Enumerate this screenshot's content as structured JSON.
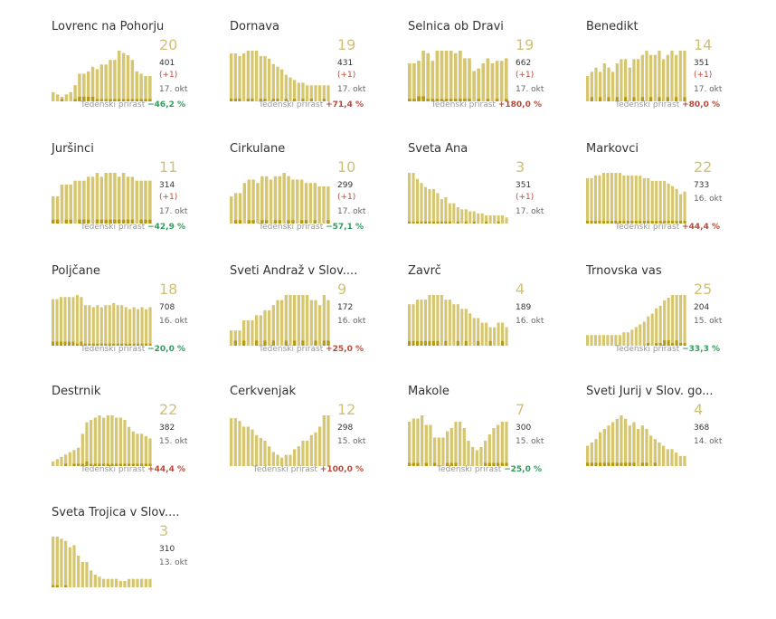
{
  "growth_label": "Tedenski prirast",
  "colors": {
    "total_bar": "#d6c670",
    "new_bar": "#b89a10",
    "big_number": "#d2c175",
    "increase": "#b84a3a",
    "decrease": "#2f9e5a"
  },
  "chart_data": [
    {
      "type": "bar",
      "title": "Lovrenc na Pohorju",
      "active": "20",
      "total": "401",
      "delta": "(+1)",
      "date": "17. okt",
      "growth": "−46,2 %",
      "growth_dir": "down",
      "values": [
        4,
        3,
        2,
        3,
        4,
        7,
        12,
        12,
        13,
        15,
        14,
        16,
        16,
        18,
        18,
        22,
        21,
        20,
        18,
        13,
        12,
        11,
        11
      ],
      "new_values": [
        0,
        0,
        1,
        0,
        0,
        1,
        2,
        2,
        2,
        2,
        1,
        1,
        1,
        1,
        1,
        1,
        1,
        1,
        1,
        1,
        1,
        1,
        1
      ]
    },
    {
      "type": "bar",
      "title": "Dornava",
      "active": "19",
      "total": "431",
      "delta": "(+1)",
      "date": "17. okt",
      "growth": "+71,4 %",
      "growth_dir": "up",
      "values": [
        18,
        18,
        17,
        18,
        19,
        19,
        19,
        17,
        17,
        16,
        14,
        13,
        12,
        10,
        9,
        8,
        7,
        7,
        6,
        6,
        6,
        6,
        6,
        6
      ],
      "new_values": [
        1,
        1,
        1,
        0,
        1,
        1,
        0,
        1,
        1,
        0,
        1,
        1,
        0,
        1,
        0,
        1,
        0,
        1,
        0,
        1,
        0,
        0,
        1,
        0
      ]
    },
    {
      "type": "bar",
      "title": "Selnica ob Dravi",
      "active": "19",
      "total": "662",
      "delta": "(+1)",
      "date": "17. okt",
      "growth": "+180,0 %",
      "growth_dir": "up",
      "values": [
        15,
        15,
        16,
        20,
        19,
        16,
        20,
        20,
        20,
        20,
        19,
        20,
        17,
        17,
        12,
        13,
        15,
        17,
        15,
        16,
        16,
        17
      ],
      "new_values": [
        1,
        1,
        2,
        2,
        1,
        1,
        1,
        1,
        1,
        1,
        1,
        1,
        1,
        1,
        0,
        1,
        0,
        1,
        0,
        1,
        0,
        1
      ]
    },
    {
      "type": "bar",
      "title": "Benedikt",
      "active": "14",
      "total": "351",
      "delta": "(+1)",
      "date": "17. okt",
      "growth": "+80,0 %",
      "growth_dir": "up",
      "values": [
        6,
        7,
        8,
        7,
        9,
        8,
        7,
        9,
        10,
        10,
        8,
        10,
        10,
        11,
        12,
        11,
        11,
        12,
        10,
        11,
        12,
        11,
        12,
        12
      ],
      "new_values": [
        0,
        1,
        0,
        1,
        0,
        1,
        0,
        1,
        0,
        1,
        0,
        1,
        0,
        1,
        0,
        1,
        0,
        1,
        0,
        1,
        0,
        1,
        0,
        1
      ]
    },
    {
      "type": "bar",
      "title": "Juršinci",
      "active": "11",
      "total": "314",
      "delta": "(+1)",
      "date": "17. okt",
      "growth": "−42,9 %",
      "growth_dir": "down",
      "values": [
        7,
        7,
        10,
        10,
        10,
        11,
        11,
        11,
        12,
        12,
        13,
        12,
        13,
        13,
        13,
        12,
        13,
        12,
        12,
        11,
        11,
        11,
        11
      ],
      "new_values": [
        1,
        1,
        0,
        1,
        1,
        0,
        1,
        1,
        1,
        0,
        1,
        1,
        1,
        1,
        1,
        1,
        1,
        1,
        1,
        0,
        1,
        1,
        1
      ]
    },
    {
      "type": "bar",
      "title": "Cirkulane",
      "active": "10",
      "total": "299",
      "delta": "(+1)",
      "date": "17. okt",
      "growth": "−57,1 %",
      "growth_dir": "down",
      "values": [
        8,
        9,
        9,
        12,
        13,
        13,
        12,
        14,
        14,
        13,
        14,
        14,
        15,
        14,
        13,
        13,
        13,
        12,
        12,
        12,
        11,
        11,
        11
      ],
      "new_values": [
        0,
        1,
        1,
        0,
        1,
        1,
        0,
        1,
        1,
        0,
        1,
        1,
        0,
        1,
        1,
        0,
        1,
        1,
        0,
        1,
        0,
        0,
        1
      ]
    },
    {
      "type": "bar",
      "title": "Sveta Ana",
      "active": "3",
      "total": "351",
      "delta": "(+1)",
      "date": "17. okt",
      "growth": "",
      "growth_dir": "",
      "values": [
        25,
        25,
        22,
        20,
        18,
        17,
        17,
        15,
        12,
        13,
        10,
        10,
        8,
        7,
        7,
        6,
        6,
        5,
        5,
        4,
        4,
        4,
        4,
        4,
        3
      ],
      "new_values": [
        1,
        1,
        1,
        1,
        1,
        1,
        1,
        1,
        1,
        1,
        1,
        0,
        1,
        0,
        1,
        0,
        1,
        0,
        0,
        1,
        0,
        0,
        1,
        0,
        0
      ]
    },
    {
      "type": "bar",
      "title": "Markovci",
      "active": "22",
      "total": "733",
      "delta": "",
      "date": "16. okt",
      "growth": "+44,4 %",
      "growth_dir": "up",
      "values": [
        17,
        17,
        18,
        18,
        19,
        19,
        19,
        19,
        19,
        18,
        18,
        18,
        18,
        18,
        17,
        17,
        16,
        16,
        16,
        16,
        15,
        14,
        13,
        11,
        12
      ],
      "new_values": [
        1,
        1,
        1,
        1,
        1,
        1,
        1,
        1,
        1,
        1,
        1,
        1,
        1,
        1,
        1,
        1,
        1,
        1,
        1,
        1,
        1,
        1,
        1,
        1,
        1
      ]
    },
    {
      "type": "bar",
      "title": "Poljčane",
      "active": "18",
      "total": "708",
      "delta": "",
      "date": "16. okt",
      "growth": "−20,0 %",
      "growth_dir": "down",
      "values": [
        23,
        23,
        24,
        24,
        24,
        24,
        25,
        24,
        20,
        20,
        19,
        20,
        19,
        20,
        20,
        21,
        20,
        20,
        19,
        18,
        19,
        18,
        19,
        18,
        19
      ],
      "new_values": [
        2,
        2,
        2,
        2,
        2,
        2,
        1,
        2,
        1,
        1,
        1,
        1,
        1,
        1,
        1,
        1,
        1,
        1,
        1,
        1,
        1,
        1,
        1,
        1,
        1
      ]
    },
    {
      "type": "bar",
      "title": "Sveti Andraž v Slov....",
      "active": "9",
      "total": "172",
      "delta": "",
      "date": "16. okt",
      "growth": "+25,0 %",
      "growth_dir": "up",
      "values": [
        3,
        3,
        3,
        5,
        5,
        5,
        6,
        6,
        7,
        7,
        8,
        9,
        9,
        10,
        10,
        10,
        10,
        10,
        10,
        9,
        9,
        8,
        10,
        9
      ],
      "new_values": [
        0,
        1,
        0,
        1,
        0,
        0,
        1,
        0,
        1,
        0,
        1,
        0,
        0,
        1,
        0,
        1,
        0,
        1,
        0,
        0,
        1,
        0,
        1,
        1
      ]
    },
    {
      "type": "bar",
      "title": "Zavrč",
      "active": "4",
      "total": "189",
      "delta": "",
      "date": "16. okt",
      "growth": "",
      "growth_dir": "",
      "values": [
        9,
        9,
        10,
        10,
        10,
        11,
        11,
        11,
        11,
        10,
        10,
        9,
        9,
        8,
        8,
        7,
        6,
        6,
        5,
        5,
        4,
        4,
        5,
        5,
        4
      ],
      "new_values": [
        1,
        1,
        1,
        1,
        1,
        1,
        1,
        1,
        0,
        1,
        0,
        0,
        1,
        0,
        1,
        0,
        0,
        1,
        0,
        0,
        1,
        0,
        0,
        1,
        0
      ]
    },
    {
      "type": "bar",
      "title": "Trnovska vas",
      "active": "25",
      "total": "204",
      "delta": "",
      "date": "15. okt",
      "growth": "−33,3 %",
      "growth_dir": "down",
      "values": [
        4,
        4,
        4,
        4,
        4,
        4,
        4,
        4,
        4,
        5,
        5,
        6,
        7,
        8,
        9,
        11,
        12,
        14,
        15,
        17,
        18,
        19,
        19,
        19,
        19
      ],
      "new_values": [
        0,
        0,
        0,
        0,
        0,
        0,
        0,
        0,
        0,
        0,
        0,
        0,
        0,
        0,
        0,
        1,
        0,
        1,
        1,
        2,
        2,
        1,
        2,
        1,
        1
      ]
    },
    {
      "type": "bar",
      "title": "Destrnik",
      "active": "22",
      "total": "382",
      "delta": "",
      "date": "15. okt",
      "growth": "+44,4 %",
      "growth_dir": "up",
      "values": [
        2,
        3,
        4,
        5,
        6,
        7,
        8,
        14,
        19,
        20,
        21,
        22,
        21,
        22,
        22,
        21,
        21,
        20,
        17,
        15,
        14,
        14,
        13,
        12
      ],
      "new_values": [
        0,
        0,
        0,
        1,
        0,
        1,
        1,
        1,
        2,
        1,
        1,
        1,
        1,
        1,
        1,
        1,
        1,
        1,
        1,
        1,
        1,
        1,
        1,
        1
      ]
    },
    {
      "type": "bar",
      "title": "Cerkvenjak",
      "active": "12",
      "total": "298",
      "delta": "",
      "date": "15. okt",
      "growth": "+100,0 %",
      "growth_dir": "up",
      "values": [
        17,
        17,
        16,
        14,
        14,
        13,
        11,
        10,
        9,
        7,
        5,
        4,
        3,
        4,
        4,
        6,
        7,
        9,
        9,
        11,
        12,
        14,
        18,
        18
      ],
      "new_values": [
        0,
        0,
        0,
        0,
        0,
        0,
        0,
        0,
        0,
        0,
        0,
        0,
        0,
        0,
        0,
        0,
        0,
        0,
        0,
        0,
        0,
        0,
        0,
        0
      ]
    },
    {
      "type": "bar",
      "title": "Makole",
      "active": "7",
      "total": "300",
      "delta": "",
      "date": "15. okt",
      "growth": "−25,0 %",
      "growth_dir": "down",
      "values": [
        14,
        15,
        15,
        16,
        13,
        13,
        9,
        9,
        9,
        11,
        12,
        14,
        14,
        12,
        8,
        6,
        5,
        6,
        8,
        10,
        12,
        13,
        14,
        14
      ],
      "new_values": [
        1,
        1,
        1,
        0,
        1,
        0,
        1,
        0,
        0,
        1,
        1,
        1,
        0,
        0,
        0,
        0,
        0,
        0,
        1,
        1,
        1,
        1,
        1,
        1
      ]
    },
    {
      "type": "bar",
      "title": "Sveti Jurij v Slov. go...",
      "active": "4",
      "total": "368",
      "delta": "",
      "date": "14. okt",
      "growth": "",
      "growth_dir": "",
      "values": [
        6,
        7,
        8,
        10,
        11,
        12,
        13,
        14,
        15,
        14,
        12,
        13,
        11,
        12,
        11,
        9,
        8,
        7,
        6,
        5,
        5,
        4,
        3,
        3
      ],
      "new_values": [
        1,
        1,
        1,
        1,
        1,
        1,
        1,
        1,
        1,
        1,
        1,
        1,
        0,
        1,
        1,
        0,
        1,
        0,
        0,
        0,
        0,
        0,
        0,
        0
      ]
    },
    {
      "type": "bar",
      "title": "Sveta Trojica v Slov....",
      "active": "3",
      "total": "310",
      "delta": "",
      "date": "13. okt",
      "growth": "",
      "growth_dir": "",
      "values": [
        24,
        24,
        23,
        22,
        19,
        20,
        15,
        12,
        12,
        8,
        6,
        5,
        4,
        4,
        4,
        4,
        3,
        3,
        4,
        4,
        4,
        4,
        4,
        4
      ],
      "new_values": [
        1,
        1,
        0,
        1,
        0,
        0,
        0,
        0,
        0,
        0,
        0,
        0,
        0,
        0,
        0,
        0,
        0,
        0,
        0,
        0,
        0,
        0,
        0,
        0
      ]
    }
  ]
}
